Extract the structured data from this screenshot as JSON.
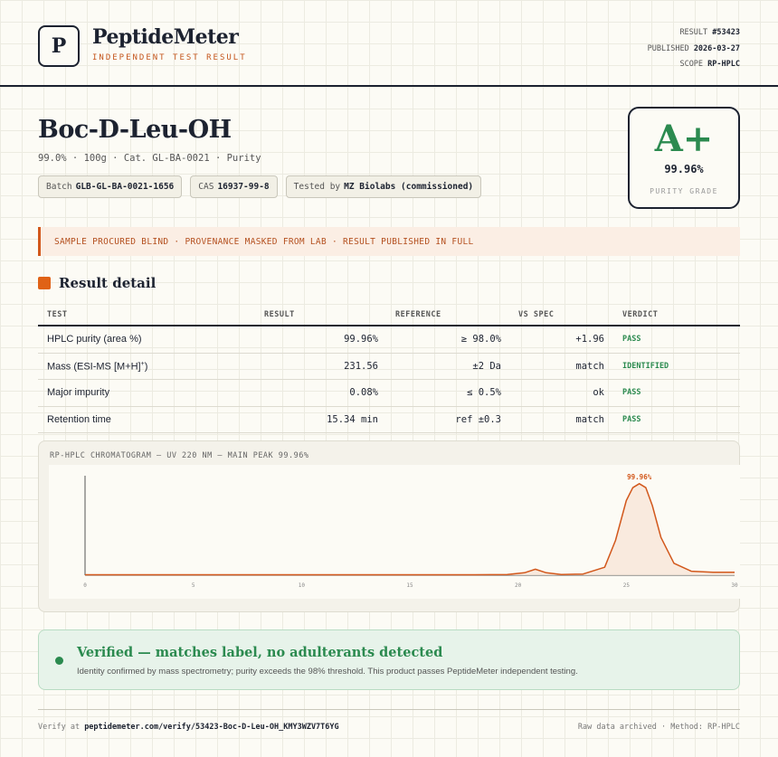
{
  "header": {
    "logo_letter": "P",
    "brand_name": "PeptideMeter",
    "brand_sub": "INDEPENDENT TEST RESULT",
    "meta": [
      {
        "label": "RESULT",
        "value": "#53423"
      },
      {
        "label": "PUBLISHED",
        "value": "2026-03-27"
      },
      {
        "label": "SCOPE",
        "value": "RP-HPLC"
      }
    ]
  },
  "product": {
    "title": "Boc-D-Leu-OH",
    "subline": "99.0% · 100g · Cat. GL-BA-0021 · Purity",
    "chips": [
      {
        "label": "Batch",
        "value": "GLB-GL-BA-0021-1656"
      },
      {
        "label": "CAS",
        "value": "16937-99-8"
      },
      {
        "label": "Tested by",
        "value": "MZ Biolabs (commissioned)"
      }
    ]
  },
  "grade": {
    "letter": "A+",
    "value": "99.96%",
    "label": "PURITY GRADE"
  },
  "banner": "SAMPLE PROCURED BLIND · PROVENANCE MASKED FROM LAB · RESULT PUBLISHED IN FULL",
  "section_title": "Result detail",
  "table": {
    "headers": [
      "TEST",
      "RESULT",
      "REFERENCE",
      "VS SPEC",
      "VERDICT"
    ],
    "rows": [
      {
        "test": "HPLC purity (area %)",
        "test_sup": "",
        "result": "99.96%",
        "reference": "≥ 98.0%",
        "vs_spec": "+1.96",
        "verdict": "PASS"
      },
      {
        "test": "Mass (ESI-MS [M+H]",
        "test_sup": "+",
        "test_end": ")",
        "result": "231.56",
        "reference": "±2 Da",
        "vs_spec": "match",
        "verdict": "IDENTIFIED"
      },
      {
        "test": "Major impurity",
        "test_sup": "",
        "result": "0.08%",
        "reference": "≤ 0.5%",
        "vs_spec": "ok",
        "verdict": "PASS"
      },
      {
        "test": "Retention time",
        "test_sup": "",
        "result": "15.34 min",
        "reference": "ref ±0.3",
        "vs_spec": "match",
        "verdict": "PASS"
      }
    ]
  },
  "chart_data": {
    "type": "line",
    "title": "RP-HPLC CHROMATOGRAM — UV 220 NM — MAIN PEAK 99.96%",
    "xlabel": "",
    "ylabel": "",
    "xlim": [
      0,
      30
    ],
    "x_ticks": [
      "0",
      "5",
      "10",
      "15",
      "20",
      "25",
      "30"
    ],
    "peak_label": "99.96%",
    "series": [
      {
        "x": [
          0,
          2,
          4,
          6,
          8,
          10,
          12,
          14,
          16,
          18,
          19.5,
          20.3,
          20.8,
          21.3,
          22,
          23,
          24,
          24.5,
          25,
          25.3,
          25.6,
          25.9,
          26.2,
          26.6,
          27.2,
          28,
          29,
          30
        ],
        "y": [
          0.5,
          0.5,
          0.5,
          0.5,
          0.5,
          0.5,
          0.5,
          0.5,
          0.5,
          0.5,
          0.6,
          2.5,
          6,
          2.5,
          0.7,
          1.2,
          8,
          35,
          75,
          88,
          92,
          88,
          70,
          38,
          12,
          4,
          3,
          3
        ]
      }
    ],
    "ylim": [
      0,
      100
    ],
    "grid": false,
    "colors": {
      "line": "#d2581c",
      "fill": "#f7e6d8"
    }
  },
  "verified": {
    "title": "Verified — matches label, no adulterants detected",
    "text": "Identity confirmed by mass spectrometry; purity exceeds the 98% threshold. This product passes PeptideMeter independent testing."
  },
  "footer": {
    "verify_prefix": "Verify at",
    "verify_url": "peptidemeter.com/verify/53423-Boc-D-Leu-OH_KMY3WZV7T6YG",
    "right": "Raw data archived · Method: RP-HPLC"
  },
  "colors": {
    "accent": "#e06216",
    "pass": "#2b8a4f",
    "ink": "#1c2230"
  }
}
